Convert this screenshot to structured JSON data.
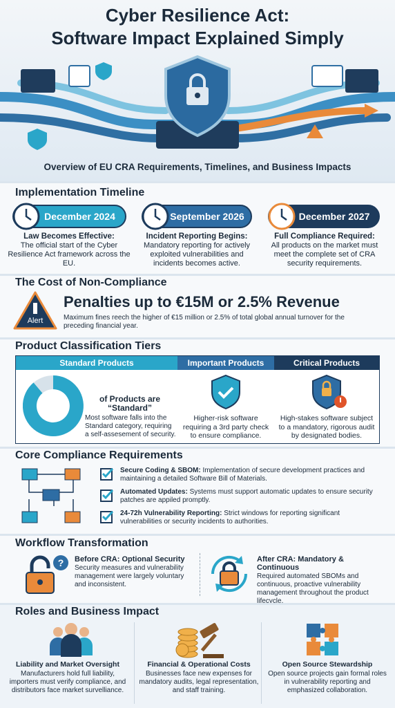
{
  "header": {
    "title": [
      "Cyber Resilience Act:",
      "Software Impact Explained Simply"
    ],
    "subtitle": "Overview of EU CRA Requirements, Timelines, and Business Impacts"
  },
  "timeline": {
    "heading": "Implementation Timeline",
    "milestones": [
      {
        "date": "December 2024",
        "label": "Law Becomes Effective:",
        "description": "The official start of the Cyber Resilience Act framework across the EU."
      },
      {
        "date": "September 2026",
        "label": "Incident Reporting Begins:",
        "description": "Mandatory reporting for actively exploited vulnerabilities and incidents becomes active."
      },
      {
        "date": "December 2027",
        "label": "Full Compliance Required:",
        "description": "All products on the market must meet the complete set of CRA security requirements."
      }
    ]
  },
  "cost": {
    "heading": "The Cost of Non-Compliance",
    "alert_label": "Alert",
    "headline": "Penalties up to €15M or 2.5% Revenue",
    "description": "Maximum fines reech the higher of €15 million or 2.5% of total global annual turnover for the preceding financial year."
  },
  "tiers": {
    "heading": "Product Classification Tiers",
    "columns": [
      {
        "name": "Standard Products",
        "title": "of Products are “Standard”",
        "description": "Most software falls into the Standard category, requiring a self-assesement of security."
      },
      {
        "name": "Important Products",
        "description": "Higher-risk software requiring a 3rd party check to ensure compliance."
      },
      {
        "name": "Critical Products",
        "description": "High-stakes software subject to a mandatory, rigorous audit by designated bodies."
      }
    ]
  },
  "requirements": {
    "heading": "Core Compliance Requirements",
    "items": [
      {
        "label": "Secure Coding & SBOM:",
        "text": "Implementation of secure development practices and maintaining a detailed Software Bill of Materials."
      },
      {
        "label": "Automated Updates:",
        "text": "Systems must support automatic updates to ensure security patches are appiled promptly."
      },
      {
        "label": "24-72h Vulnerability Reporting:",
        "text": "Strict windows for reporting significant vulnerabilities or security incidents to authorities."
      }
    ]
  },
  "workflow": {
    "heading": "Workflow Transformation",
    "before": {
      "label": "Before CRA: Optional Security",
      "text": "Security measures and vulnerability management were largely voluntary and inconsistent."
    },
    "after": {
      "label": "After CRA: Mandatory & Continuous",
      "text": "Required automated SBOMs and continuous, proactive vulnerability management throughout the product lifecycle."
    }
  },
  "roles": {
    "heading": "Roles and Business Impact",
    "items": [
      {
        "title": "Liability and Market Oversight",
        "text": "Manufacturers hold full liability, importers must verify compliance, and distributors face market survelliance."
      },
      {
        "title": "Financial & Operational Costs",
        "text": "Businesses face new expenses for mandatory audits, legal representation, and staff training."
      },
      {
        "title": "Open Source Stewardship",
        "text": "Open source projects gain formal roles in vulnerability reporting and emphasized collaboration."
      }
    ]
  }
}
